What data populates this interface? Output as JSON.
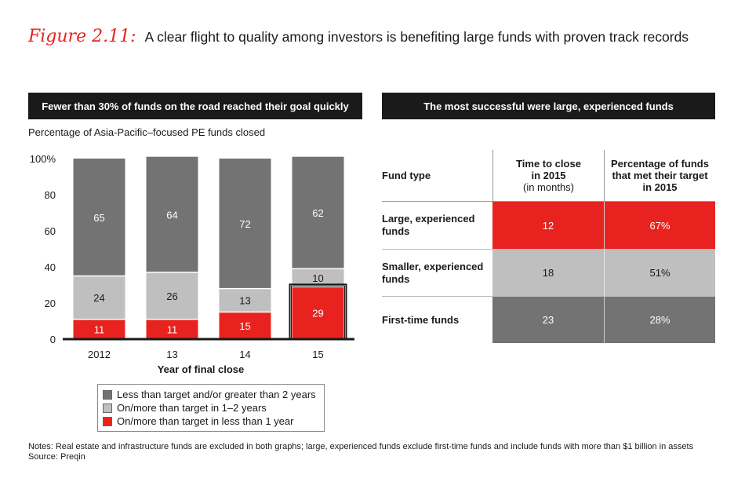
{
  "figure": {
    "label": "Figure 2.11:",
    "title": "A clear flight to quality among investors is benefiting large funds with proven track records"
  },
  "left_panel": {
    "header": "Fewer than 30% of funds on the road reached their goal quickly",
    "subtitle": "Percentage of Asia-Pacific–focused PE funds closed"
  },
  "right_panel": {
    "header": "The most successful were large, experienced funds"
  },
  "chart_data": {
    "type": "bar",
    "stacked": true,
    "categories": [
      "2012",
      "13",
      "14",
      "15"
    ],
    "series": [
      {
        "name": "On/more than target in less than 1 year",
        "values": [
          11,
          11,
          15,
          29
        ],
        "color": "#e8231f",
        "label_color": "#ffffff"
      },
      {
        "name": "On/more than target in 1–2 years",
        "values": [
          24,
          26,
          13,
          10
        ],
        "color": "#bfbfbf",
        "label_color": "#1a1a1a"
      },
      {
        "name": "Less than target and/or greater than 2 years",
        "values": [
          65,
          64,
          72,
          62
        ],
        "color": "#737373",
        "label_color": "#ffffff"
      }
    ],
    "ylim": [
      0,
      100
    ],
    "yticks": [
      "0",
      "20",
      "40",
      "60",
      "80",
      "100%"
    ],
    "xlabel": "Year of final close",
    "highlight_category": "15"
  },
  "legend": [
    {
      "label": "Less than target and/or greater than 2 years",
      "color": "#737373"
    },
    {
      "label": "On/more than target in 1–2 years",
      "color": "#bfbfbf"
    },
    {
      "label": "On/more than target in less than 1 year",
      "color": "#e8231f"
    }
  ],
  "table": {
    "header": {
      "fund_type": "Fund type",
      "col1_line1": "Time to close",
      "col1_line2": "in 2015",
      "col1_sub": "(in months)",
      "col2_line1": "Percentage of funds",
      "col2_line2": "that met their target",
      "col2_line3": "in 2015"
    },
    "rows": [
      {
        "type_line1": "Large, experienced",
        "type_line2": "funds",
        "time": "12",
        "pct": "67%",
        "bg": "#e8231f",
        "fg": "#ffffff"
      },
      {
        "type_line1": "Smaller, experienced",
        "type_line2": "funds",
        "time": "18",
        "pct": "51%",
        "bg": "#bfbfbf",
        "fg": "#1a1a1a"
      },
      {
        "type_line1": "First-time funds",
        "type_line2": "",
        "time": "23",
        "pct": "28%",
        "bg": "#737373",
        "fg": "#ffffff"
      }
    ]
  },
  "notes": {
    "line1": "Notes: Real estate and infrastructure funds are excluded in both graphs; large, experienced funds exclude first-time funds and include funds with more than $1 billion in assets",
    "line2": "Source: Preqin"
  }
}
